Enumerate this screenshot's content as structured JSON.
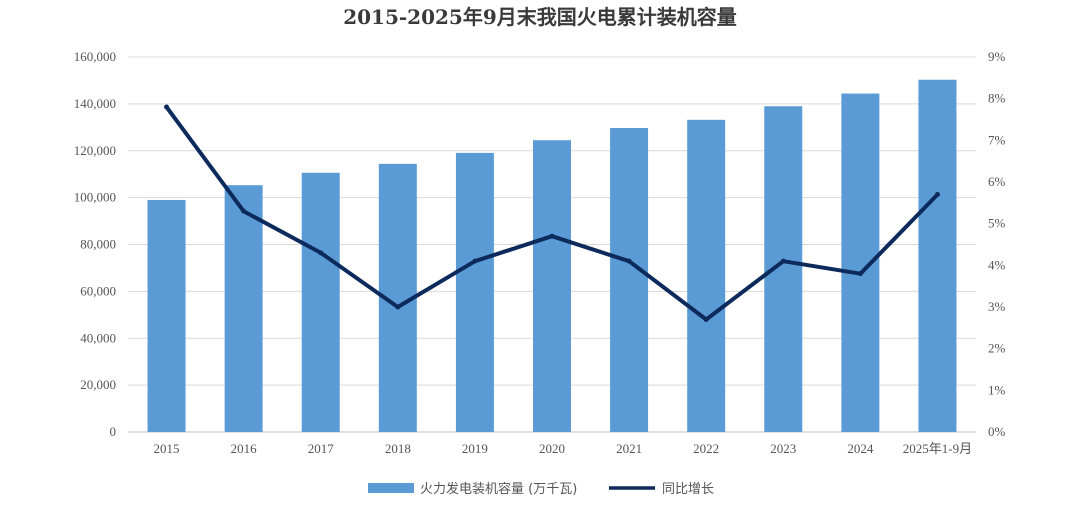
{
  "chart_data": {
    "type": "bar",
    "title": "2015-2025年9月末我国火电累计装机容量",
    "categories": [
      "2015",
      "2016",
      "2017",
      "2018",
      "2019",
      "2020",
      "2021",
      "2022",
      "2023",
      "2024",
      "2025年1-9月"
    ],
    "series": [
      {
        "name": "火力发电装机容量 (万千瓦)",
        "type": "bar",
        "axis": "left",
        "color": "#5b9bd5",
        "values": [
          99000,
          105300,
          110600,
          114400,
          119100,
          124500,
          129700,
          133200,
          139000,
          144400,
          150300
        ]
      },
      {
        "name": "同比增长",
        "type": "line",
        "axis": "right",
        "color": "#0d2a5c",
        "values": [
          7.8,
          5.3,
          4.3,
          3.0,
          4.1,
          4.7,
          4.1,
          2.7,
          4.1,
          3.8,
          5.7
        ]
      }
    ],
    "y_left": {
      "ylim": [
        0,
        160000
      ],
      "ticks": [
        "0",
        "20,000",
        "40,000",
        "60,000",
        "80,000",
        "100,000",
        "120,000",
        "140,000",
        "160,000"
      ]
    },
    "y_right": {
      "ylim": [
        0,
        9
      ],
      "ticks": [
        "0%",
        "1%",
        "2%",
        "3%",
        "4%",
        "5%",
        "6%",
        "7%",
        "8%",
        "9%"
      ]
    },
    "grid": true,
    "legend_position": "bottom-center"
  }
}
